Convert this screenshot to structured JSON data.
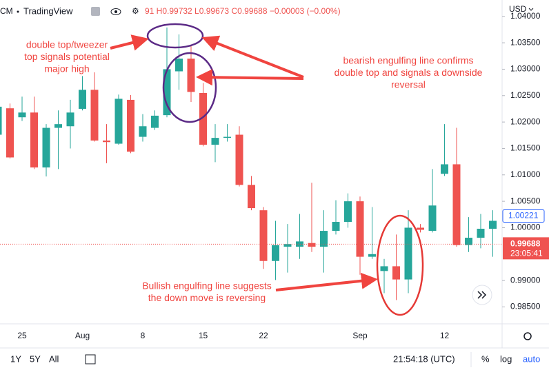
{
  "ui": {
    "symbol": "XCM",
    "site": "TradingView",
    "ohlc_header": "91 H0.99732 L0.99673 C0.99688 −0.00003 (−0.00%)",
    "currency": "USD",
    "ranges": [
      "1Y",
      "5Y",
      "All"
    ],
    "clock": "21:54:18 (UTC)",
    "percent": "%",
    "log": "log",
    "auto": "auto"
  },
  "chart_data": {
    "type": "candlestick",
    "categories": [
      null,
      null,
      "25",
      null,
      null,
      null,
      null,
      "Aug",
      null,
      null,
      null,
      null,
      "8",
      null,
      null,
      null,
      null,
      "15",
      null,
      null,
      null,
      null,
      "22",
      null,
      null,
      null,
      null,
      null,
      null,
      null,
      "Sep",
      null,
      null,
      null,
      null,
      null,
      null,
      "12",
      null,
      null,
      null,
      null
    ],
    "open": [
      1.0176,
      1.0226,
      1.0209,
      1.0218,
      1.0114,
      1.0189,
      1.0192,
      1.0225,
      1.0261,
      1.0165,
      1.0159,
      1.0242,
      1.0172,
      1.0189,
      1.0213,
      1.0296,
      1.032,
      1.0255,
      1.0157,
      1.017,
      1.0176,
      1.0081,
      1.0033,
      0.9937,
      0.9964,
      0.9964,
      0.9971,
      0.9964,
      0.9994,
      1.0011,
      1.005,
      0.9945,
      0.9918,
      0.9927,
      0.9902,
      1.0,
      0.9994,
      1.0102,
      1.012,
      0.9967,
      0.9981,
      0.9998
    ],
    "high": [
      1.0242,
      1.0235,
      1.0248,
      1.0248,
      1.0196,
      1.0222,
      1.0242,
      1.0287,
      1.0294,
      1.0196,
      1.0252,
      1.0251,
      1.0215,
      1.0222,
      1.0379,
      1.0366,
      1.0346,
      1.0274,
      1.0196,
      1.0196,
      1.0192,
      1.0098,
      1.0039,
      1.0013,
      1.0007,
      1.0026,
      1.0085,
      1.0033,
      1.0052,
      1.0065,
      1.0059,
      1.0039,
      0.9941,
      0.9987,
      1.0033,
      1.0007,
      1.0111,
      1.0196,
      1.0189,
      1.002,
      1.0026,
      1.0033
    ],
    "low": [
      1.017,
      1.0131,
      1.0202,
      1.0111,
      1.0097,
      1.0111,
      1.015,
      1.0222,
      1.0163,
      1.0122,
      1.0157,
      1.0141,
      1.0163,
      1.0185,
      1.0209,
      1.0261,
      1.0238,
      1.0154,
      1.0124,
      1.0163,
      1.0078,
      1.0033,
      0.9922,
      0.9901,
      0.9915,
      0.9941,
      0.9954,
      0.9915,
      0.9987,
      1.0,
      0.9911,
      0.9941,
      0.9876,
      0.9863,
      0.9876,
      0.9991,
      0.9991,
      1.0098,
      0.9964,
      0.9954,
      0.9961,
      0.9945
    ],
    "close": [
      1.0229,
      1.0133,
      1.0218,
      1.0114,
      1.0189,
      1.0196,
      1.0218,
      1.0261,
      1.0165,
      1.0162,
      1.0244,
      1.0144,
      1.0192,
      1.0212,
      1.03,
      1.032,
      1.0257,
      1.0157,
      1.017,
      1.0172,
      1.0081,
      1.0037,
      0.9937,
      0.9967,
      0.9969,
      0.9974,
      0.9964,
      0.9994,
      1.0011,
      1.005,
      0.9945,
      0.995,
      0.9927,
      0.9902,
      1.0,
      0.9996,
      1.0042,
      1.012,
      0.9967,
      0.9981,
      0.9998,
      1.0013
    ],
    "up_color": "#26a69a",
    "down_color": "#ef5350",
    "ylim": [
      0.9818,
      1.0431
    ],
    "yticks": [
      {
        "value": 0.985,
        "label": "0.98500"
      },
      {
        "value": 0.99,
        "label": "0.99000"
      },
      {
        "value": 1.0,
        "label": "1.00000"
      },
      {
        "value": 1.005,
        "label": "1.00500"
      },
      {
        "value": 1.01,
        "label": "1.01000"
      },
      {
        "value": 1.015,
        "label": "1.01500"
      },
      {
        "value": 1.02,
        "label": "1.02000"
      },
      {
        "value": 1.025,
        "label": "1.02500"
      },
      {
        "value": 1.03,
        "label": "1.03000"
      },
      {
        "value": 1.035,
        "label": "1.03500"
      },
      {
        "value": 1.04,
        "label": "1.04000"
      }
    ],
    "grid": false,
    "marker": {
      "value": 1.00221,
      "label": "1.00221",
      "color": "#2962ff"
    },
    "last_price": {
      "value": 0.99688,
      "label": "0.99688",
      "countdown": "23:05:41",
      "color": "#ef5350"
    },
    "annotations": [
      [
        "double top/tweezer",
        "top signals potential",
        "major high"
      ],
      [
        "bearish engulfing line confirms",
        "double top and signals a downside",
        "reversal"
      ],
      [
        "Bullish engulfing line suggests",
        "the down move is reversing"
      ]
    ]
  }
}
